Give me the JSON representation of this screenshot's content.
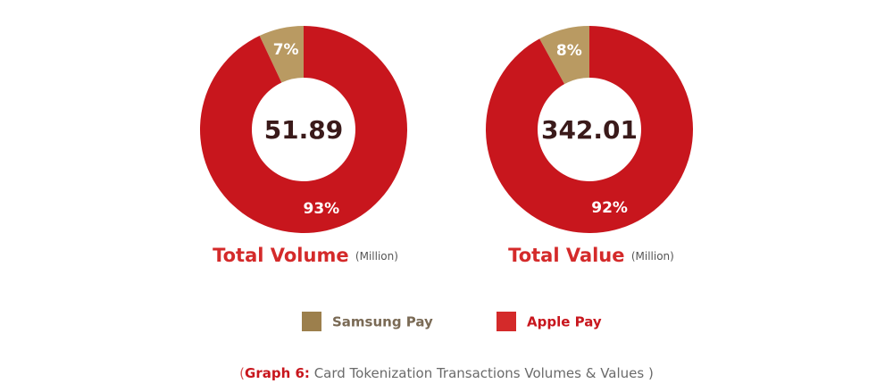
{
  "chart_data": [
    {
      "type": "pie",
      "title": "Total Volume",
      "subtitle": "(Million)",
      "center_value": 51.89,
      "categories": [
        "Samsung Pay",
        "Apple Pay"
      ],
      "values": [
        7,
        93
      ],
      "value_labels": [
        "7%",
        "93%"
      ],
      "colors": [
        "#b99a62",
        "#c8161d"
      ]
    },
    {
      "type": "pie",
      "title": "Total Value",
      "subtitle": "(Million)",
      "center_value": 342.01,
      "categories": [
        "Samsung Pay",
        "Apple Pay"
      ],
      "values": [
        8,
        92
      ],
      "value_labels": [
        "8%",
        "92%"
      ],
      "colors": [
        "#b99a62",
        "#c8161d"
      ]
    }
  ],
  "legend": {
    "items": [
      "Samsung Pay",
      "Apple Pay"
    ],
    "colors": [
      "#9c7f4c",
      "#d42a2a"
    ]
  },
  "caption": {
    "open": "(",
    "label": "Graph 6:",
    "text": "Card Tokenization Transactions Volumes & Values )"
  }
}
